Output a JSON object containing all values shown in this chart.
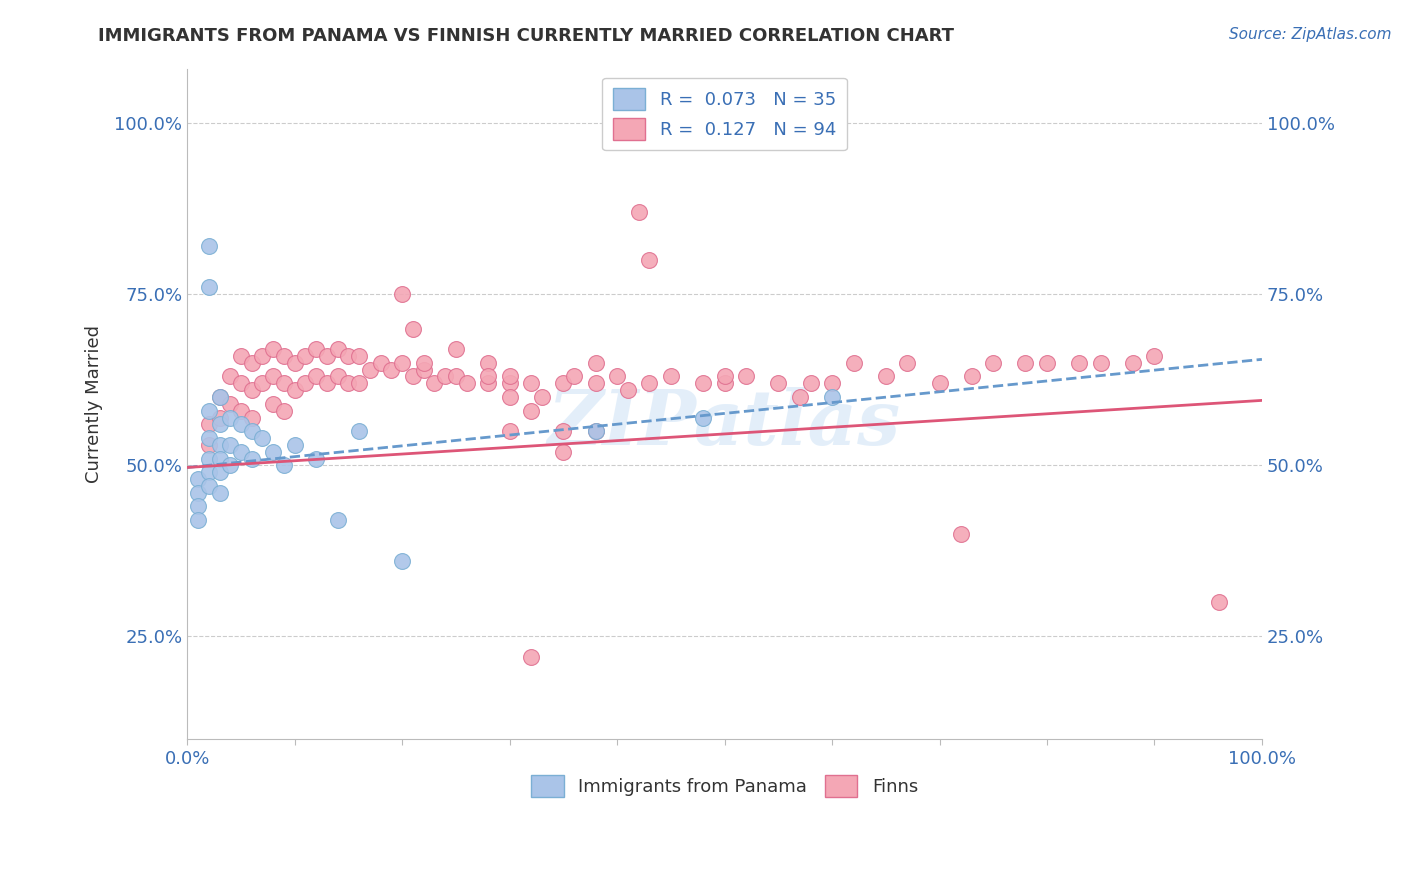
{
  "title": "IMMIGRANTS FROM PANAMA VS FINNISH CURRENTLY MARRIED CORRELATION CHART",
  "source_text": "Source: ZipAtlas.com",
  "ylabel": "Currently Married",
  "ytick_labels": [
    "25.0%",
    "50.0%",
    "75.0%",
    "100.0%"
  ],
  "ytick_values": [
    0.25,
    0.5,
    0.75,
    1.0
  ],
  "xlim": [
    0.0,
    1.0
  ],
  "ylim": [
    0.1,
    1.08
  ],
  "legend_R_entries": [
    {
      "label": "R =  0.073   N = 35",
      "color": "#aac4e8"
    },
    {
      "label": "R =  0.127   N = 94",
      "color": "#f4a7b5"
    }
  ],
  "watermark": "ZIPatlas",
  "blue_scatter_color": "#aac4e8",
  "blue_edge_color": "#7bafd4",
  "pink_scatter_color": "#f4a7b5",
  "pink_edge_color": "#e07090",
  "blue_line_color": "#6699cc",
  "pink_line_color": "#dd5577",
  "grid_color": "#cccccc",
  "background_color": "#ffffff",
  "title_color": "#333333",
  "axis_color": "#3a6fb5",
  "label_color": "#333333",
  "blue_scatter_x": [
    0.01,
    0.01,
    0.01,
    0.01,
    0.02,
    0.02,
    0.02,
    0.02,
    0.02,
    0.02,
    0.02,
    0.03,
    0.03,
    0.03,
    0.03,
    0.03,
    0.03,
    0.04,
    0.04,
    0.04,
    0.05,
    0.05,
    0.06,
    0.06,
    0.07,
    0.08,
    0.09,
    0.1,
    0.12,
    0.14,
    0.16,
    0.2,
    0.38,
    0.48,
    0.6
  ],
  "blue_scatter_y": [
    0.48,
    0.46,
    0.44,
    0.42,
    0.82,
    0.76,
    0.58,
    0.54,
    0.51,
    0.49,
    0.47,
    0.6,
    0.56,
    0.53,
    0.51,
    0.49,
    0.46,
    0.57,
    0.53,
    0.5,
    0.56,
    0.52,
    0.55,
    0.51,
    0.54,
    0.52,
    0.5,
    0.53,
    0.51,
    0.42,
    0.55,
    0.36,
    0.55,
    0.57,
    0.6
  ],
  "pink_scatter_x": [
    0.02,
    0.02,
    0.03,
    0.03,
    0.04,
    0.04,
    0.05,
    0.05,
    0.05,
    0.06,
    0.06,
    0.06,
    0.07,
    0.07,
    0.08,
    0.08,
    0.08,
    0.09,
    0.09,
    0.09,
    0.1,
    0.1,
    0.11,
    0.11,
    0.12,
    0.12,
    0.13,
    0.13,
    0.14,
    0.14,
    0.15,
    0.15,
    0.16,
    0.16,
    0.17,
    0.18,
    0.19,
    0.2,
    0.21,
    0.22,
    0.23,
    0.24,
    0.25,
    0.26,
    0.28,
    0.28,
    0.3,
    0.3,
    0.32,
    0.33,
    0.35,
    0.36,
    0.38,
    0.38,
    0.4,
    0.41,
    0.42,
    0.43,
    0.43,
    0.45,
    0.48,
    0.5,
    0.5,
    0.52,
    0.55,
    0.57,
    0.58,
    0.6,
    0.62,
    0.65,
    0.67,
    0.7,
    0.73,
    0.75,
    0.78,
    0.8,
    0.83,
    0.85,
    0.88,
    0.9,
    0.3,
    0.35,
    0.2,
    0.21,
    0.22,
    0.25,
    0.28,
    0.3,
    0.32,
    0.35,
    0.38,
    0.72,
    0.96,
    0.32
  ],
  "pink_scatter_y": [
    0.56,
    0.53,
    0.6,
    0.57,
    0.63,
    0.59,
    0.66,
    0.62,
    0.58,
    0.65,
    0.61,
    0.57,
    0.66,
    0.62,
    0.67,
    0.63,
    0.59,
    0.66,
    0.62,
    0.58,
    0.65,
    0.61,
    0.66,
    0.62,
    0.67,
    0.63,
    0.66,
    0.62,
    0.67,
    0.63,
    0.66,
    0.62,
    0.66,
    0.62,
    0.64,
    0.65,
    0.64,
    0.65,
    0.63,
    0.64,
    0.62,
    0.63,
    0.63,
    0.62,
    0.65,
    0.62,
    0.62,
    0.63,
    0.62,
    0.6,
    0.62,
    0.63,
    0.65,
    0.62,
    0.63,
    0.61,
    0.87,
    0.8,
    0.62,
    0.63,
    0.62,
    0.62,
    0.63,
    0.63,
    0.62,
    0.6,
    0.62,
    0.62,
    0.65,
    0.63,
    0.65,
    0.62,
    0.63,
    0.65,
    0.65,
    0.65,
    0.65,
    0.65,
    0.65,
    0.66,
    0.55,
    0.52,
    0.75,
    0.7,
    0.65,
    0.67,
    0.63,
    0.6,
    0.58,
    0.55,
    0.55,
    0.4,
    0.3,
    0.22
  ],
  "blue_trend_x0": 0.0,
  "blue_trend_y0": 0.497,
  "blue_trend_x1": 1.0,
  "blue_trend_y1": 0.655,
  "pink_trend_x0": 0.0,
  "pink_trend_y0": 0.497,
  "pink_trend_x1": 1.0,
  "pink_trend_y1": 0.595
}
